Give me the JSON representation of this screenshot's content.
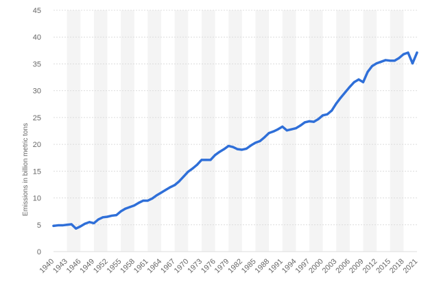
{
  "chart_data": {
    "type": "line",
    "title": "",
    "xlabel": "",
    "ylabel": "Emissions in billion metric tons",
    "ylim": [
      0,
      45
    ],
    "yticks": [
      "0",
      "5",
      "10",
      "15",
      "20",
      "25",
      "30",
      "35",
      "40",
      "45"
    ],
    "xticks": [
      "1940",
      "1943",
      "1946",
      "1949",
      "1952",
      "1955",
      "1958",
      "1961",
      "1964",
      "1967",
      "1970",
      "1973",
      "1976",
      "1979",
      "1982",
      "1985",
      "1988",
      "1991",
      "1994",
      "1997",
      "2000",
      "2003",
      "2006",
      "2009",
      "2012",
      "2015",
      "2018",
      "2021"
    ],
    "grid": true,
    "line_color": "#2f6fd8",
    "x": [
      1940,
      1941,
      1942,
      1943,
      1944,
      1945,
      1946,
      1947,
      1948,
      1949,
      1950,
      1951,
      1952,
      1953,
      1954,
      1955,
      1956,
      1957,
      1958,
      1959,
      1960,
      1961,
      1962,
      1963,
      1964,
      1965,
      1966,
      1967,
      1968,
      1969,
      1970,
      1971,
      1972,
      1973,
      1974,
      1975,
      1976,
      1977,
      1978,
      1979,
      1980,
      1981,
      1982,
      1983,
      1984,
      1985,
      1986,
      1987,
      1988,
      1989,
      1990,
      1991,
      1992,
      1993,
      1994,
      1995,
      1996,
      1997,
      1998,
      1999,
      2000,
      2001,
      2002,
      2003,
      2004,
      2005,
      2006,
      2007,
      2008,
      2009,
      2010,
      2011,
      2012,
      2013,
      2014,
      2015,
      2016,
      2017,
      2018,
      2019,
      2020,
      2021
    ],
    "series": [
      {
        "values": [
          4.8,
          4.9,
          4.9,
          5.0,
          5.1,
          4.3,
          4.7,
          5.2,
          5.5,
          5.3,
          6.0,
          6.4,
          6.5,
          6.7,
          6.8,
          7.5,
          8.0,
          8.3,
          8.6,
          9.1,
          9.5,
          9.5,
          9.9,
          10.5,
          11.0,
          11.5,
          12.0,
          12.4,
          13.1,
          14.0,
          14.9,
          15.5,
          16.2,
          17.1,
          17.1,
          17.1,
          18.0,
          18.6,
          19.1,
          19.7,
          19.5,
          19.1,
          19.0,
          19.2,
          19.8,
          20.3,
          20.6,
          21.3,
          22.1,
          22.4,
          22.8,
          23.3,
          22.6,
          22.8,
          23.0,
          23.5,
          24.1,
          24.3,
          24.2,
          24.7,
          25.4,
          25.6,
          26.3,
          27.6,
          28.7,
          29.7,
          30.7,
          31.6,
          32.1,
          31.6,
          33.5,
          34.6,
          35.1,
          35.4,
          35.7,
          35.6,
          35.6,
          36.1,
          36.8,
          37.1,
          35.1,
          37.1
        ]
      }
    ]
  }
}
